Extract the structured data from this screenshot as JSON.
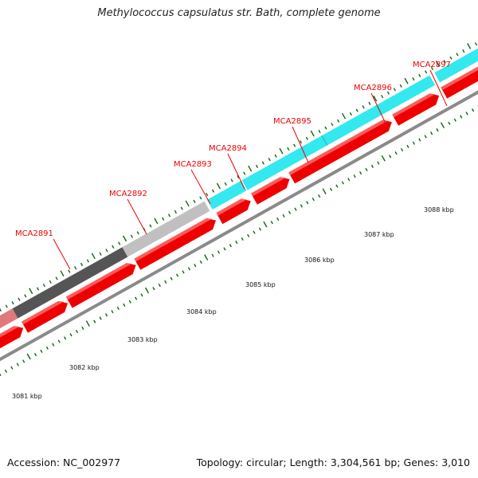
{
  "header": {
    "title": "Methylococcus capsulatus str. Bath, complete genome"
  },
  "footer": {
    "accession": "Accession: NC_002977",
    "info": "Topology: circular; Length: 3,304,561 bp; Genes: 3,010"
  },
  "colors": {
    "cyan_gene": "#33e8ee",
    "dark_gene": "#555555",
    "light_gene": "#c0c0c0",
    "cds": "#ee0000",
    "backbone": "#8a8a8a",
    "tick": "#116611",
    "label": "#ee0000"
  },
  "gene_labels": [
    "MCA2891",
    "MCA2892",
    "MCA2893",
    "MCA2894",
    "MCA2895",
    "MCA2896",
    "MCA2897"
  ],
  "scale_labels": [
    "3081 kbp",
    "3082 kbp",
    "3083 kbp",
    "3084 kbp",
    "3085 kbp",
    "3086 kbp",
    "3087 kbp",
    "3088 kbp"
  ]
}
